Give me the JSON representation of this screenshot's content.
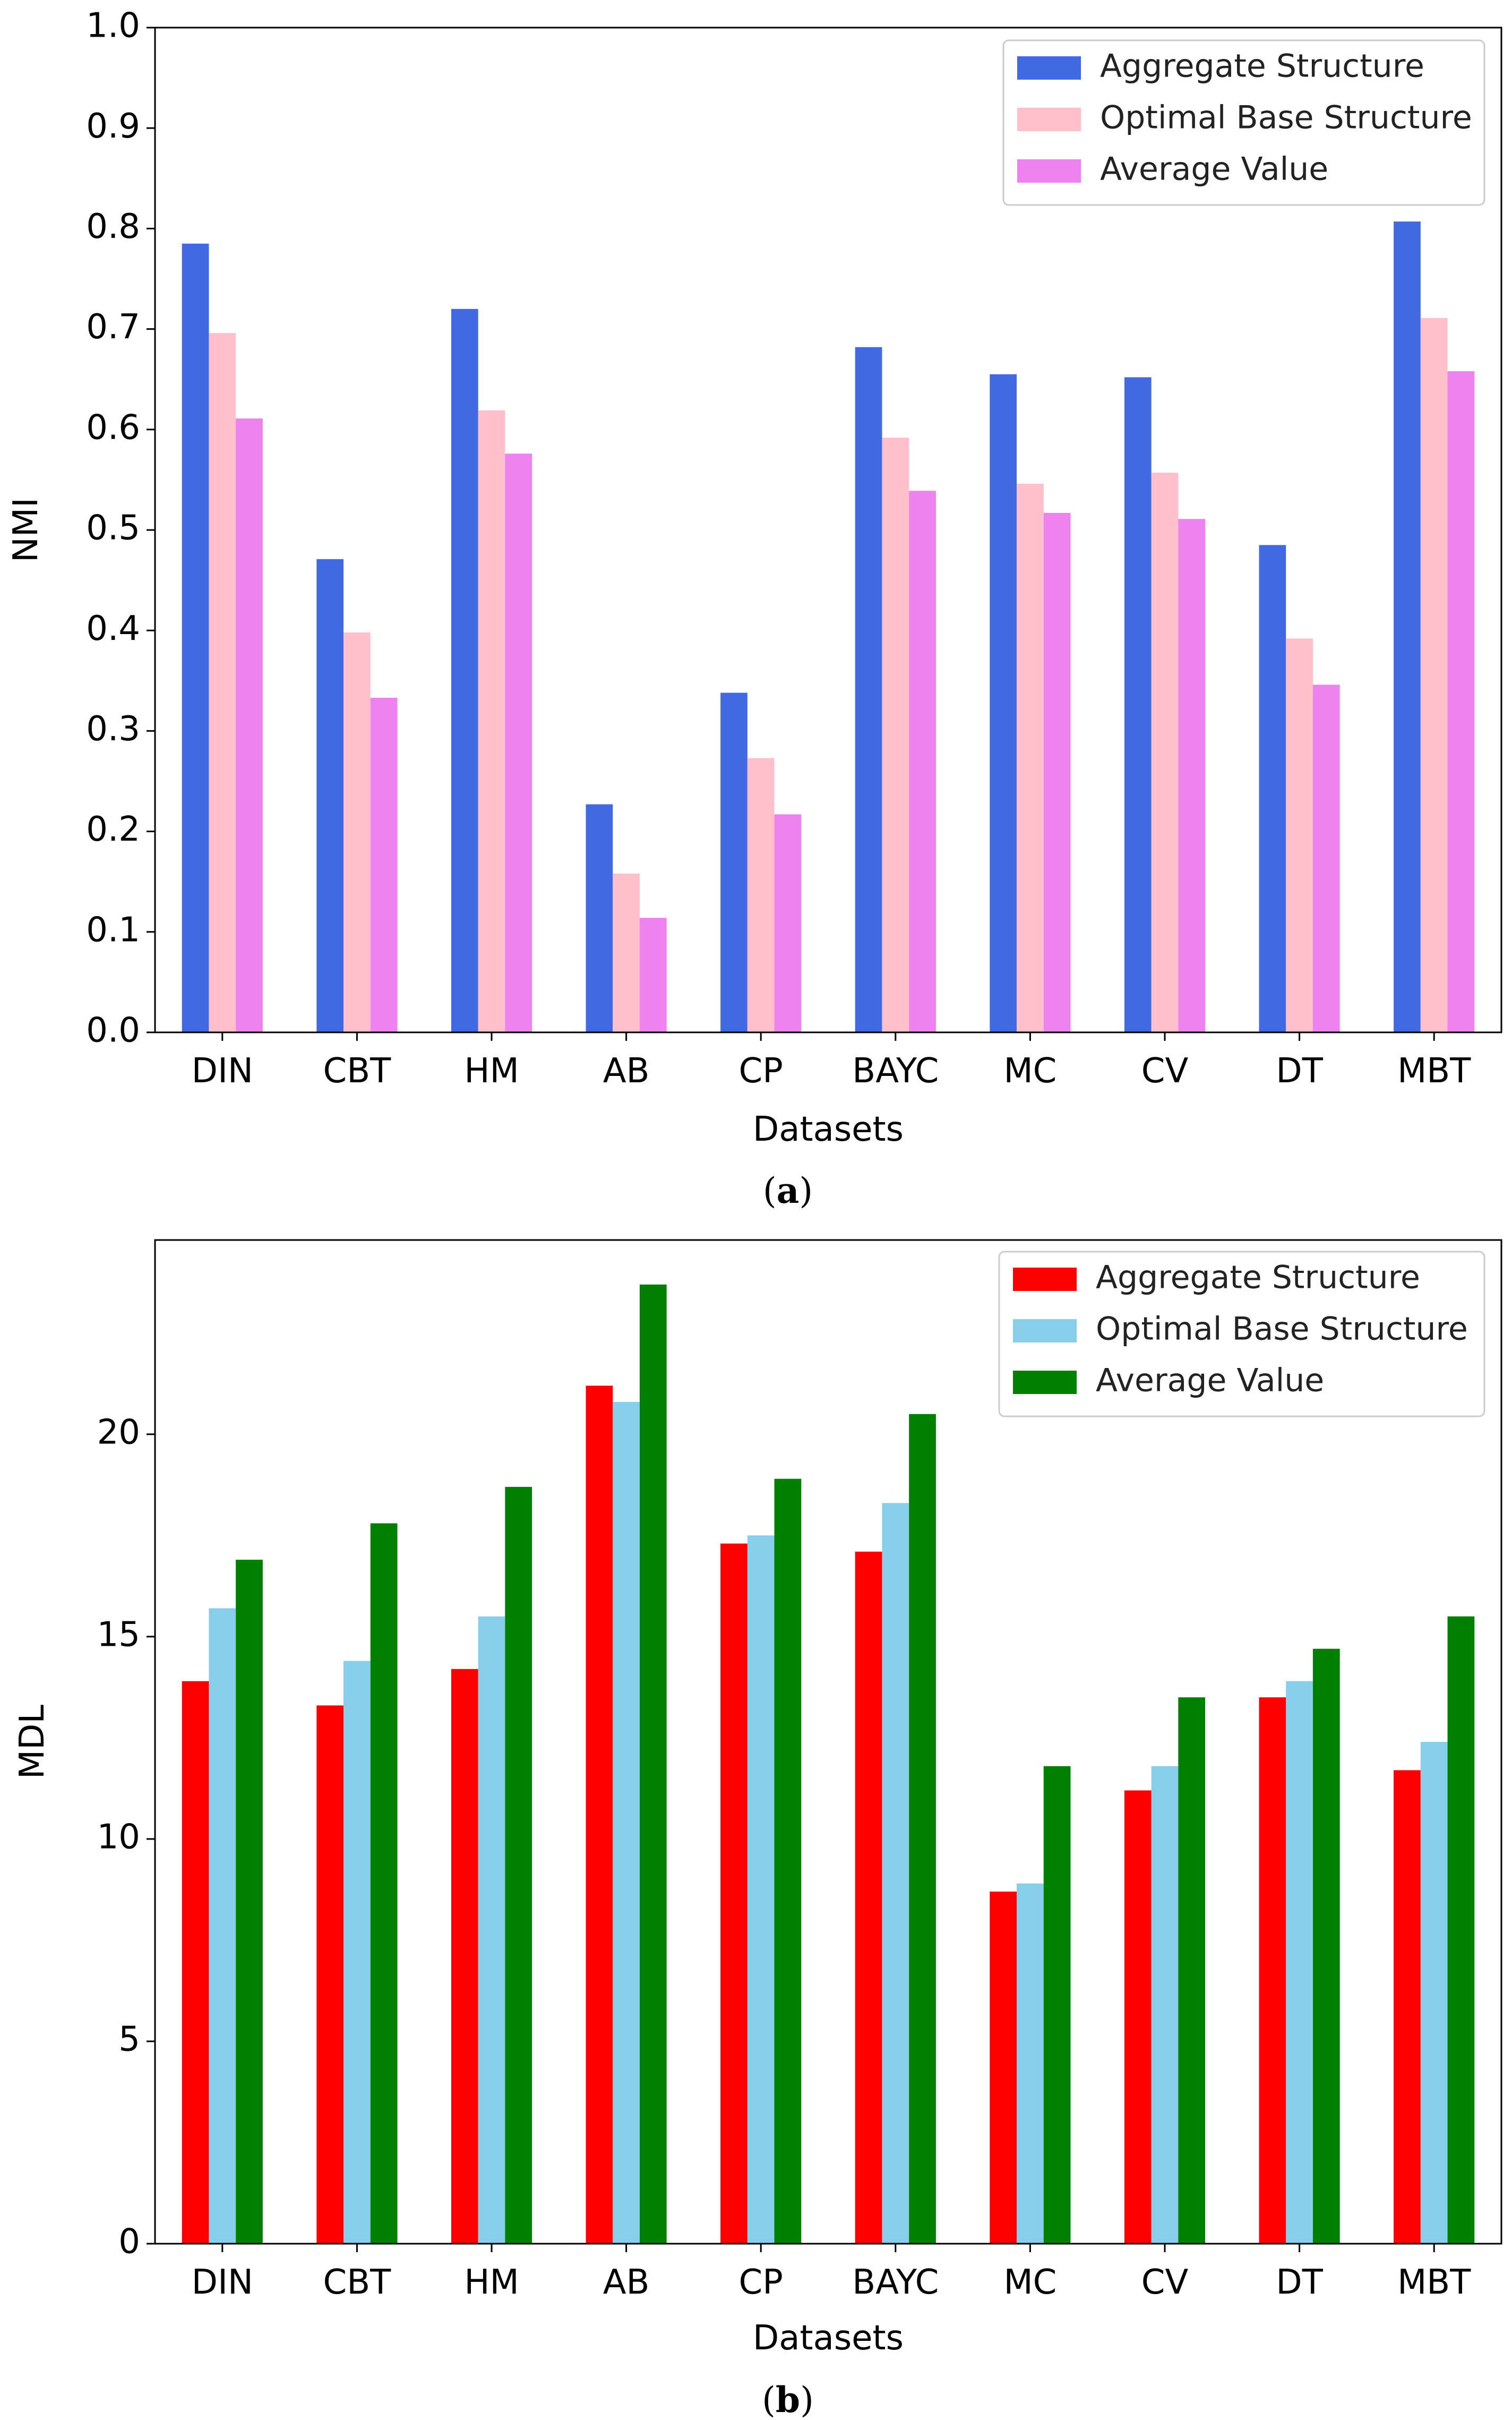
{
  "chart_data": [
    {
      "id": "a",
      "type": "bar",
      "caption_letter": "a",
      "caption_open": "(",
      "caption_close": ")",
      "xlabel": "Datasets",
      "ylabel": "NMI",
      "ylim": [
        0,
        1.0
      ],
      "yticks": [
        0.0,
        0.1,
        0.2,
        0.3,
        0.4,
        0.5,
        0.6,
        0.7,
        0.8,
        0.9,
        1.0
      ],
      "ytick_labels": [
        "0.0",
        "0.1",
        "0.2",
        "0.3",
        "0.4",
        "0.5",
        "0.6",
        "0.7",
        "0.8",
        "0.9",
        "1.0"
      ],
      "grid": false,
      "legend_position": "top-right",
      "categories": [
        "DIN",
        "CBT",
        "HM",
        "AB",
        "CP",
        "BAYC",
        "MC",
        "CV",
        "DT",
        "MBT"
      ],
      "series": [
        {
          "name": "Aggregate Structure",
          "color": "#4169e1",
          "values": [
            0.785,
            0.471,
            0.72,
            0.227,
            0.338,
            0.682,
            0.655,
            0.652,
            0.485,
            0.807
          ]
        },
        {
          "name": "Optimal Base Structure",
          "color": "#ffc0cb",
          "values": [
            0.696,
            0.398,
            0.619,
            0.158,
            0.273,
            0.592,
            0.546,
            0.557,
            0.392,
            0.711
          ]
        },
        {
          "name": "Average Value",
          "color": "#ee82ee",
          "values": [
            0.611,
            0.333,
            0.576,
            0.114,
            0.217,
            0.539,
            0.517,
            0.511,
            0.346,
            0.658
          ]
        }
      ]
    },
    {
      "id": "b",
      "type": "bar",
      "caption_letter": "b",
      "caption_open": "(",
      "caption_close": ")",
      "xlabel": "Datasets",
      "ylabel": "MDL",
      "ylim": [
        0,
        24.8
      ],
      "yticks": [
        0,
        5,
        10,
        15,
        20
      ],
      "ytick_labels": [
        "0",
        "5",
        "10",
        "15",
        "20"
      ],
      "grid": false,
      "legend_position": "top-right",
      "categories": [
        "DIN",
        "CBT",
        "HM",
        "AB",
        "CP",
        "BAYC",
        "MC",
        "CV",
        "DT",
        "MBT"
      ],
      "series": [
        {
          "name": "Aggregate Structure",
          "color": "#ff0000",
          "values": [
            13.9,
            13.3,
            14.2,
            21.2,
            17.3,
            17.1,
            8.7,
            11.2,
            13.5,
            11.7
          ]
        },
        {
          "name": "Optimal Base Structure",
          "color": "#87ceeb",
          "values": [
            15.7,
            14.4,
            15.5,
            20.8,
            17.5,
            18.3,
            8.9,
            11.8,
            13.9,
            12.4
          ]
        },
        {
          "name": "Average Value",
          "color": "#008000",
          "values": [
            16.9,
            17.8,
            18.7,
            23.7,
            18.9,
            20.5,
            11.8,
            13.5,
            14.7,
            15.5
          ]
        }
      ]
    }
  ]
}
